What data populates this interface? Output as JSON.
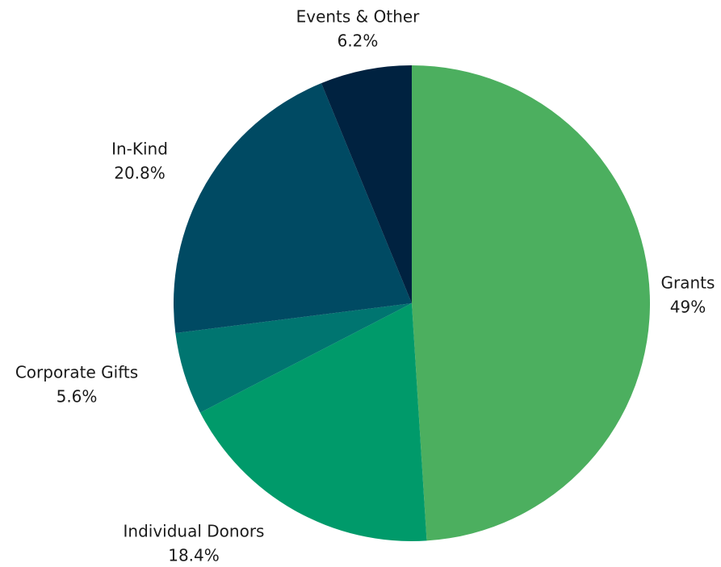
{
  "chart_data": {
    "type": "pie",
    "categories": [
      "Grants",
      "Individual Donors",
      "Corporate Gifts",
      "In-Kind",
      "Events & Other"
    ],
    "values": [
      49,
      18.4,
      5.6,
      20.8,
      6.2
    ],
    "value_labels": [
      "49%",
      "18.4%",
      "5.6%",
      "20.8%",
      "6.2%"
    ],
    "colors": [
      "#4caf5f",
      "#009a6a",
      "#007570",
      "#004a63",
      "#002240"
    ]
  }
}
